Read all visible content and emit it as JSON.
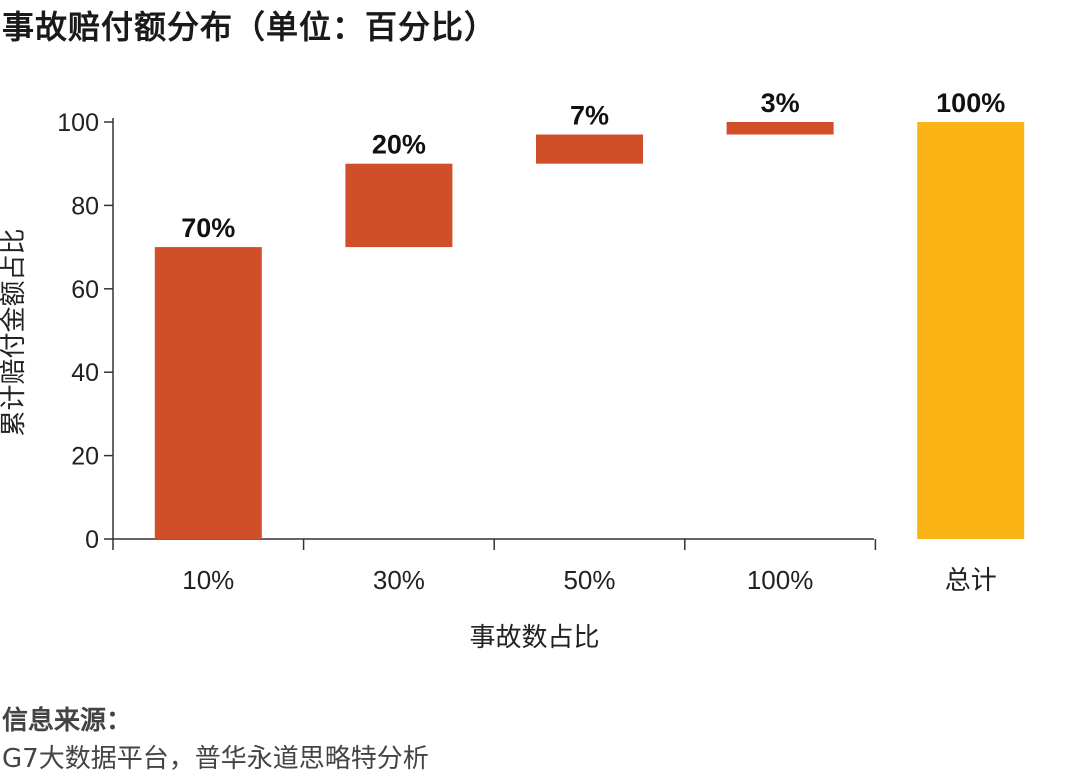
{
  "title": "事故赔付额分布（单位：百分比）",
  "chart_data": {
    "type": "bar",
    "subtype": "waterfall",
    "categories": [
      "10%",
      "30%",
      "50%",
      "100%",
      "总计"
    ],
    "series": [
      {
        "values": [
          70,
          20,
          7,
          3,
          100
        ],
        "bases": [
          0,
          70,
          90,
          97,
          0
        ],
        "data_labels": [
          "70%",
          "20%",
          "7%",
          "3%",
          "100%"
        ]
      }
    ],
    "colors": [
      "#d04e28",
      "#d04e28",
      "#d04e28",
      "#d04e28",
      "#fbb416"
    ],
    "xlabel": "事故数占比",
    "ylabel": "累计赔付金额占比",
    "ylim": [
      0,
      100
    ],
    "yticks": [
      0,
      20,
      40,
      60,
      80,
      100
    ],
    "grid": false,
    "legend": "none"
  },
  "source": {
    "label": "信息来源：",
    "text": "G7大数据平台，普华永道思略特分析"
  }
}
